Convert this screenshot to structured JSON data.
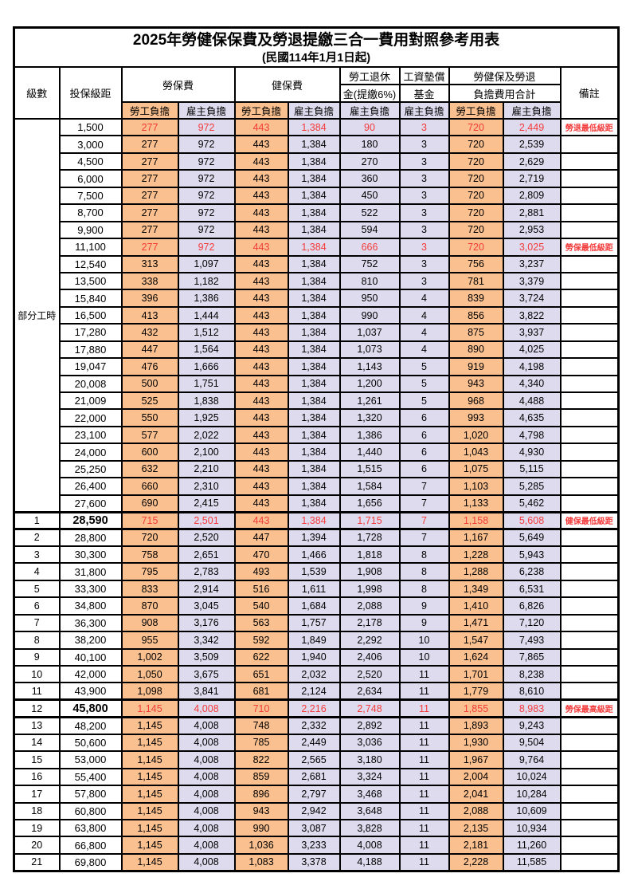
{
  "page": {
    "title": "2025年勞健保保費及勞退提繳三合一費用對照參考用表",
    "subtitle": "(民國114年1月1日起)"
  },
  "colors": {
    "employee_bg": "#FAC08F",
    "employer_bg": "#DFDBEE",
    "highlight_red": "#F43B3B",
    "border": "#000000"
  },
  "table": {
    "headers": {
      "level": "級數",
      "salary": "投保級距",
      "labor_insurance": "勞保費",
      "health_insurance": "健保費",
      "pension_line1": "勞工退休",
      "pension_line2": "金(提繳6%)",
      "wage_fund_line1": "工資墊償",
      "wage_fund_line2": "基金",
      "total_line1": "勞健保及勞退",
      "total_line2": "負擔費用合計",
      "remark": "備註",
      "employee": "勞工負擔",
      "employer": "雇主負擔"
    },
    "part_time_label": "部分工時",
    "rows": [
      {
        "level": "",
        "salary": "1,500",
        "cells": [
          "277",
          "972",
          "443",
          "1,384",
          "90",
          "3",
          "720",
          "2,449"
        ],
        "remark": "勞退最低級距",
        "red": true,
        "emphasis": false
      },
      {
        "level": "",
        "salary": "3,000",
        "cells": [
          "277",
          "972",
          "443",
          "1,384",
          "180",
          "3",
          "720",
          "2,539"
        ],
        "remark": "",
        "red": false,
        "emphasis": false
      },
      {
        "level": "",
        "salary": "4,500",
        "cells": [
          "277",
          "972",
          "443",
          "1,384",
          "270",
          "3",
          "720",
          "2,629"
        ],
        "remark": "",
        "red": false,
        "emphasis": false
      },
      {
        "level": "",
        "salary": "6,000",
        "cells": [
          "277",
          "972",
          "443",
          "1,384",
          "360",
          "3",
          "720",
          "2,719"
        ],
        "remark": "",
        "red": false,
        "emphasis": false
      },
      {
        "level": "",
        "salary": "7,500",
        "cells": [
          "277",
          "972",
          "443",
          "1,384",
          "450",
          "3",
          "720",
          "2,809"
        ],
        "remark": "",
        "red": false,
        "emphasis": false
      },
      {
        "level": "",
        "salary": "8,700",
        "cells": [
          "277",
          "972",
          "443",
          "1,384",
          "522",
          "3",
          "720",
          "2,881"
        ],
        "remark": "",
        "red": false,
        "emphasis": false
      },
      {
        "level": "",
        "salary": "9,900",
        "cells": [
          "277",
          "972",
          "443",
          "1,384",
          "594",
          "3",
          "720",
          "2,953"
        ],
        "remark": "",
        "red": false,
        "emphasis": false
      },
      {
        "level": "",
        "salary": "11,100",
        "cells": [
          "277",
          "972",
          "443",
          "1,384",
          "666",
          "3",
          "720",
          "3,025"
        ],
        "remark": "勞保最低級距",
        "red": true,
        "emphasis": false
      },
      {
        "level": "",
        "salary": "12,540",
        "cells": [
          "313",
          "1,097",
          "443",
          "1,384",
          "752",
          "3",
          "756",
          "3,237"
        ],
        "remark": "",
        "red": false,
        "emphasis": false
      },
      {
        "level": "",
        "salary": "13,500",
        "cells": [
          "338",
          "1,182",
          "443",
          "1,384",
          "810",
          "3",
          "781",
          "3,379"
        ],
        "remark": "",
        "red": false,
        "emphasis": false
      },
      {
        "level": "",
        "salary": "15,840",
        "cells": [
          "396",
          "1,386",
          "443",
          "1,384",
          "950",
          "4",
          "839",
          "3,724"
        ],
        "remark": "",
        "red": false,
        "emphasis": false
      },
      {
        "level": "",
        "salary": "16,500",
        "cells": [
          "413",
          "1,444",
          "443",
          "1,384",
          "990",
          "4",
          "856",
          "3,822"
        ],
        "remark": "",
        "red": false,
        "emphasis": false
      },
      {
        "level": "",
        "salary": "17,280",
        "cells": [
          "432",
          "1,512",
          "443",
          "1,384",
          "1,037",
          "4",
          "875",
          "3,937"
        ],
        "remark": "",
        "red": false,
        "emphasis": false
      },
      {
        "level": "",
        "salary": "17,880",
        "cells": [
          "447",
          "1,564",
          "443",
          "1,384",
          "1,073",
          "4",
          "890",
          "4,025"
        ],
        "remark": "",
        "red": false,
        "emphasis": false
      },
      {
        "level": "",
        "salary": "19,047",
        "cells": [
          "476",
          "1,666",
          "443",
          "1,384",
          "1,143",
          "5",
          "919",
          "4,198"
        ],
        "remark": "",
        "red": false,
        "emphasis": false
      },
      {
        "level": "",
        "salary": "20,008",
        "cells": [
          "500",
          "1,751",
          "443",
          "1,384",
          "1,200",
          "5",
          "943",
          "4,340"
        ],
        "remark": "",
        "red": false,
        "emphasis": false
      },
      {
        "level": "",
        "salary": "21,009",
        "cells": [
          "525",
          "1,838",
          "443",
          "1,384",
          "1,261",
          "5",
          "968",
          "4,488"
        ],
        "remark": "",
        "red": false,
        "emphasis": false
      },
      {
        "level": "",
        "salary": "22,000",
        "cells": [
          "550",
          "1,925",
          "443",
          "1,384",
          "1,320",
          "6",
          "993",
          "4,635"
        ],
        "remark": "",
        "red": false,
        "emphasis": false
      },
      {
        "level": "",
        "salary": "23,100",
        "cells": [
          "577",
          "2,022",
          "443",
          "1,384",
          "1,386",
          "6",
          "1,020",
          "4,798"
        ],
        "remark": "",
        "red": false,
        "emphasis": false
      },
      {
        "level": "",
        "salary": "24,000",
        "cells": [
          "600",
          "2,100",
          "443",
          "1,384",
          "1,440",
          "6",
          "1,043",
          "4,930"
        ],
        "remark": "",
        "red": false,
        "emphasis": false
      },
      {
        "level": "",
        "salary": "25,250",
        "cells": [
          "632",
          "2,210",
          "443",
          "1,384",
          "1,515",
          "6",
          "1,075",
          "5,115"
        ],
        "remark": "",
        "red": false,
        "emphasis": false
      },
      {
        "level": "",
        "salary": "26,400",
        "cells": [
          "660",
          "2,310",
          "443",
          "1,384",
          "1,584",
          "7",
          "1,103",
          "5,285"
        ],
        "remark": "",
        "red": false,
        "emphasis": false
      },
      {
        "level": "",
        "salary": "27,600",
        "cells": [
          "690",
          "2,415",
          "443",
          "1,384",
          "1,656",
          "7",
          "1,133",
          "5,462"
        ],
        "remark": "",
        "red": false,
        "emphasis": false
      },
      {
        "level": "1",
        "salary": "28,590",
        "cells": [
          "715",
          "2,501",
          "443",
          "1,384",
          "1,715",
          "7",
          "1,158",
          "5,608"
        ],
        "remark": "健保最低級距",
        "red": true,
        "emphasis": true
      },
      {
        "level": "2",
        "salary": "28,800",
        "cells": [
          "720",
          "2,520",
          "447",
          "1,394",
          "1,728",
          "7",
          "1,167",
          "5,649"
        ],
        "remark": "",
        "red": false,
        "emphasis": false
      },
      {
        "level": "3",
        "salary": "30,300",
        "cells": [
          "758",
          "2,651",
          "470",
          "1,466",
          "1,818",
          "8",
          "1,228",
          "5,943"
        ],
        "remark": "",
        "red": false,
        "emphasis": false
      },
      {
        "level": "4",
        "salary": "31,800",
        "cells": [
          "795",
          "2,783",
          "493",
          "1,539",
          "1,908",
          "8",
          "1,288",
          "6,238"
        ],
        "remark": "",
        "red": false,
        "emphasis": false
      },
      {
        "level": "5",
        "salary": "33,300",
        "cells": [
          "833",
          "2,914",
          "516",
          "1,611",
          "1,998",
          "8",
          "1,349",
          "6,531"
        ],
        "remark": "",
        "red": false,
        "emphasis": false
      },
      {
        "level": "6",
        "salary": "34,800",
        "cells": [
          "870",
          "3,045",
          "540",
          "1,684",
          "2,088",
          "9",
          "1,410",
          "6,826"
        ],
        "remark": "",
        "red": false,
        "emphasis": false
      },
      {
        "level": "7",
        "salary": "36,300",
        "cells": [
          "908",
          "3,176",
          "563",
          "1,757",
          "2,178",
          "9",
          "1,471",
          "7,120"
        ],
        "remark": "",
        "red": false,
        "emphasis": false
      },
      {
        "level": "8",
        "salary": "38,200",
        "cells": [
          "955",
          "3,342",
          "592",
          "1,849",
          "2,292",
          "10",
          "1,547",
          "7,493"
        ],
        "remark": "",
        "red": false,
        "emphasis": false
      },
      {
        "level": "9",
        "salary": "40,100",
        "cells": [
          "1,002",
          "3,509",
          "622",
          "1,940",
          "2,406",
          "10",
          "1,624",
          "7,865"
        ],
        "remark": "",
        "red": false,
        "emphasis": false
      },
      {
        "level": "10",
        "salary": "42,000",
        "cells": [
          "1,050",
          "3,675",
          "651",
          "2,032",
          "2,520",
          "11",
          "1,701",
          "8,238"
        ],
        "remark": "",
        "red": false,
        "emphasis": false
      },
      {
        "level": "11",
        "salary": "43,900",
        "cells": [
          "1,098",
          "3,841",
          "681",
          "2,124",
          "2,634",
          "11",
          "1,779",
          "8,610"
        ],
        "remark": "",
        "red": false,
        "emphasis": false
      },
      {
        "level": "12",
        "salary": "45,800",
        "cells": [
          "1,145",
          "4,008",
          "710",
          "2,216",
          "2,748",
          "11",
          "1,855",
          "8,983"
        ],
        "remark": "勞保最高級距",
        "red": true,
        "emphasis": true
      },
      {
        "level": "13",
        "salary": "48,200",
        "cells": [
          "1,145",
          "4,008",
          "748",
          "2,332",
          "2,892",
          "11",
          "1,893",
          "9,243"
        ],
        "remark": "",
        "red": false,
        "emphasis": false
      },
      {
        "level": "14",
        "salary": "50,600",
        "cells": [
          "1,145",
          "4,008",
          "785",
          "2,449",
          "3,036",
          "11",
          "1,930",
          "9,504"
        ],
        "remark": "",
        "red": false,
        "emphasis": false
      },
      {
        "level": "15",
        "salary": "53,000",
        "cells": [
          "1,145",
          "4,008",
          "822",
          "2,565",
          "3,180",
          "11",
          "1,967",
          "9,764"
        ],
        "remark": "",
        "red": false,
        "emphasis": false
      },
      {
        "level": "16",
        "salary": "55,400",
        "cells": [
          "1,145",
          "4,008",
          "859",
          "2,681",
          "3,324",
          "11",
          "2,004",
          "10,024"
        ],
        "remark": "",
        "red": false,
        "emphasis": false
      },
      {
        "level": "17",
        "salary": "57,800",
        "cells": [
          "1,145",
          "4,008",
          "896",
          "2,797",
          "3,468",
          "11",
          "2,041",
          "10,284"
        ],
        "remark": "",
        "red": false,
        "emphasis": false
      },
      {
        "level": "18",
        "salary": "60,800",
        "cells": [
          "1,145",
          "4,008",
          "943",
          "2,942",
          "3,648",
          "11",
          "2,088",
          "10,609"
        ],
        "remark": "",
        "red": false,
        "emphasis": false
      },
      {
        "level": "19",
        "salary": "63,800",
        "cells": [
          "1,145",
          "4,008",
          "990",
          "3,087",
          "3,828",
          "11",
          "2,135",
          "10,934"
        ],
        "remark": "",
        "red": false,
        "emphasis": false
      },
      {
        "level": "20",
        "salary": "66,800",
        "cells": [
          "1,145",
          "4,008",
          "1,036",
          "3,233",
          "4,008",
          "11",
          "2,181",
          "11,260"
        ],
        "remark": "",
        "red": false,
        "emphasis": false
      },
      {
        "level": "21",
        "salary": "69,800",
        "cells": [
          "1,145",
          "4,008",
          "1,083",
          "3,378",
          "4,188",
          "11",
          "2,228",
          "11,585"
        ],
        "remark": "",
        "red": false,
        "emphasis": false
      }
    ]
  }
}
